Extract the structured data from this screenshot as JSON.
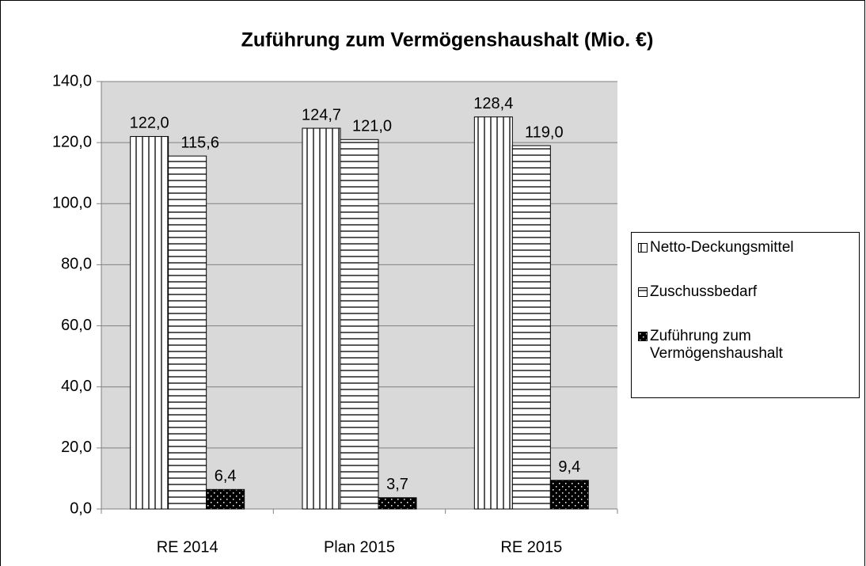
{
  "chart_data": {
    "type": "bar",
    "title": "Zuführung zum Vermögenshaushalt (Mio. €)",
    "categories": [
      "RE 2014",
      "Plan 2015",
      "RE 2015"
    ],
    "series": [
      {
        "name": "Netto-Deckungsmittel",
        "color": "#000000",
        "pattern": "vertical",
        "values": [
          122.0,
          124.7,
          128.4
        ],
        "value_labels": [
          "122,0",
          "124,7",
          "128,4"
        ]
      },
      {
        "name": "Zuschussbedarf",
        "color": "#000000",
        "pattern": "horizontal",
        "values": [
          115.6,
          121.0,
          119.0
        ],
        "value_labels": [
          "115,6",
          "121,0",
          "119,0"
        ]
      },
      {
        "name": "Zuführung zum Vermögenshaushalt",
        "color": "#000000",
        "pattern": "dots",
        "values": [
          6.4,
          3.7,
          9.4
        ],
        "value_labels": [
          "6,4",
          "3,7",
          "9,4"
        ]
      }
    ],
    "ylim": [
      0,
      140
    ],
    "yticks": [
      {
        "value": 0,
        "label": "0,0"
      },
      {
        "value": 20,
        "label": "20,0"
      },
      {
        "value": 40,
        "label": "40,0"
      },
      {
        "value": 60,
        "label": "60,0"
      },
      {
        "value": 80,
        "label": "80,0"
      },
      {
        "value": 100,
        "label": "100,0"
      },
      {
        "value": 120,
        "label": "120,0"
      },
      {
        "value": 140,
        "label": "140,0"
      }
    ],
    "grid": true,
    "plot_background": "#d9d9d9",
    "legend": "right"
  }
}
